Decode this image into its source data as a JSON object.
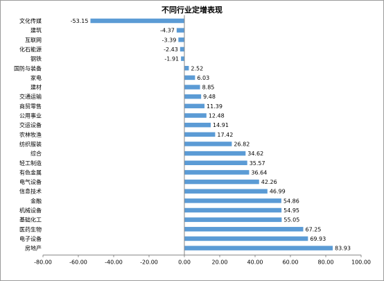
{
  "chart_data": {
    "type": "bar",
    "orientation": "horizontal",
    "title": "不同行业定增表现",
    "categories": [
      "文化传媒",
      "建筑",
      "互联网",
      "化石能源",
      "钢铁",
      "国防与装备",
      "家电",
      "建材",
      "交通运输",
      "商贸零售",
      "公用事业",
      "交运设备",
      "农林牧渔",
      "纺织服装",
      "综合",
      "轻工制造",
      "有色金属",
      "电气设备",
      "信息技术",
      "金融",
      "机械设备",
      "基础化工",
      "医药生物",
      "电子设备",
      "房地产"
    ],
    "values": [
      -53.15,
      -4.37,
      -3.39,
      -2.43,
      -1.91,
      2.52,
      6.03,
      8.85,
      9.48,
      11.39,
      12.48,
      14.91,
      17.42,
      26.82,
      34.62,
      35.57,
      36.64,
      42.26,
      46.99,
      54.86,
      54.95,
      55.05,
      67.25,
      69.93,
      83.93
    ],
    "value_labels": [
      "-53.15",
      "-4.37",
      "-3.39",
      "-2.43",
      "-1.91",
      "2.52",
      "6.03",
      "8.85",
      "9.48",
      "11.39",
      "12.48",
      "14.91",
      "17.42",
      "26.82",
      "34.62",
      "35.57",
      "36.64",
      "42.26",
      "46.99",
      "54.86",
      "54.95",
      "55.05",
      "67.25",
      "69.93",
      "83.93"
    ],
    "xlim": [
      -80,
      100
    ],
    "xticks": [
      "-80.00",
      "-60.00",
      "-40.00",
      "-20.00",
      "0.00",
      "20.00",
      "40.00",
      "60.00",
      "80.00",
      "100.00"
    ],
    "xlabel": "",
    "ylabel": "",
    "bar_color": "#5b9bd5",
    "grid": false,
    "legend": false
  }
}
